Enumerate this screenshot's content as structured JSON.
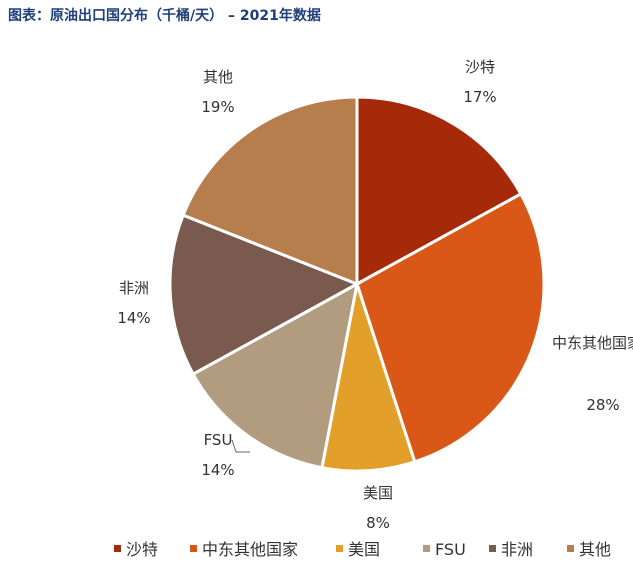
{
  "title": "图表：原油出口国分布（千桶/天） – 2021年数据",
  "chart_data": {
    "type": "pie",
    "title": "图表：原油出口国分布（千桶/天） – 2021年数据",
    "slices": [
      {
        "name": "沙特",
        "value": 17,
        "label": "17%",
        "color": "#a52a0a"
      },
      {
        "name": "中东其他国家",
        "value": 28,
        "label": "28%",
        "color": "#d95818"
      },
      {
        "name": "美国",
        "value": 8,
        "label": "8%",
        "color": "#e2a02a"
      },
      {
        "name": "FSU",
        "value": 14,
        "label": "14%",
        "color": "#b29c80"
      },
      {
        "name": "非洲",
        "value": 14,
        "label": "14%",
        "color": "#7a5a4e"
      },
      {
        "name": "其他",
        "value": 19,
        "label": "19%",
        "color": "#b57e4c"
      }
    ],
    "legend_position": "bottom"
  }
}
